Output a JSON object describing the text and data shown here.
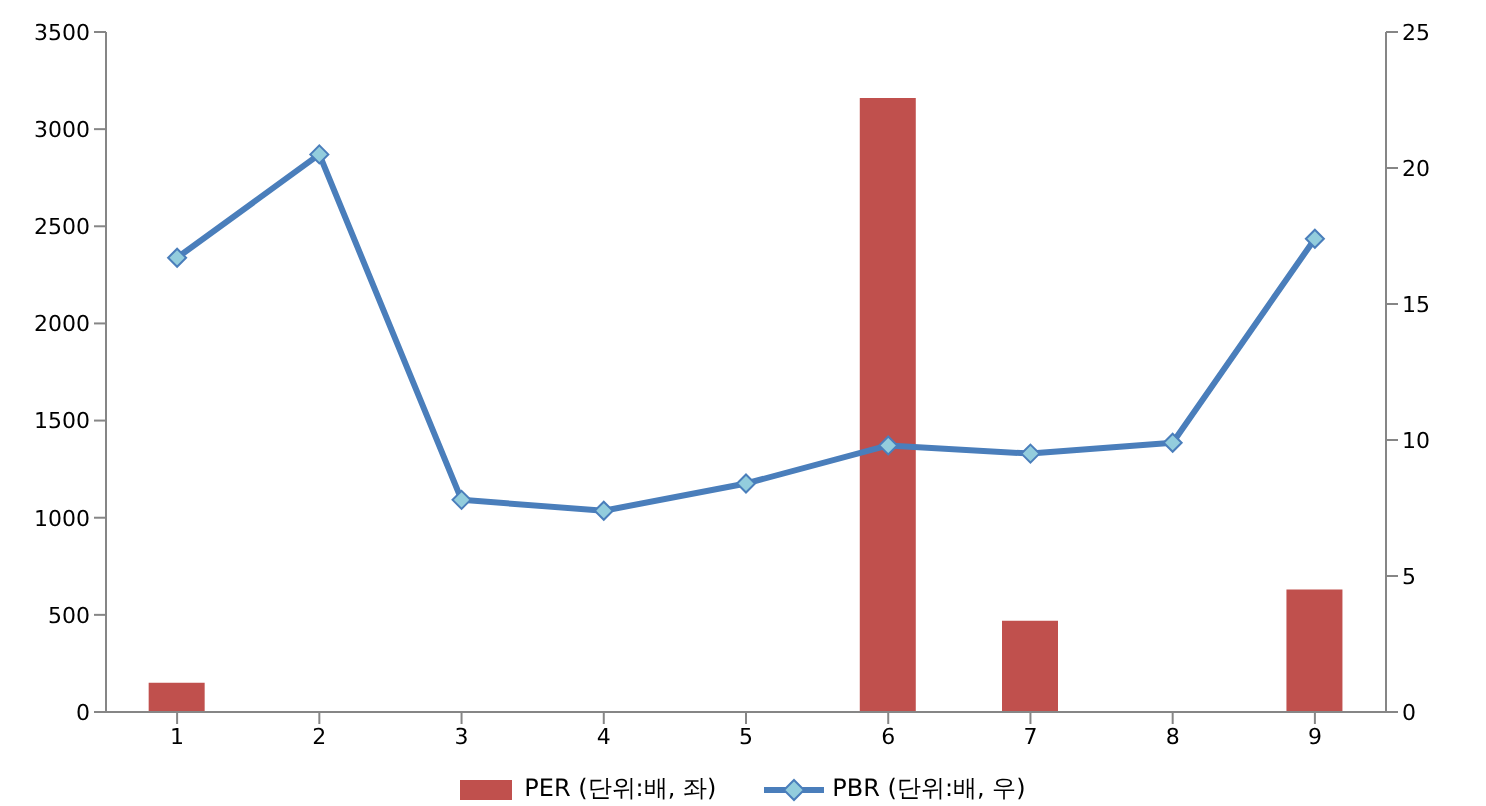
{
  "chart_data": {
    "type": "bar",
    "categories": [
      "1",
      "2",
      "3",
      "4",
      "5",
      "6",
      "7",
      "8",
      "9"
    ],
    "series": [
      {
        "name": "PER (단위:배, 좌)",
        "color": "#c0504d",
        "values": [
          150,
          null,
          null,
          null,
          null,
          3160,
          470,
          null,
          630
        ]
      },
      {
        "name": "PBR (단위:배, 우)",
        "type": "line",
        "axis": "y2",
        "color": "#4a7ebb",
        "marker": "diamond",
        "values": [
          16.7,
          20.5,
          7.8,
          7.4,
          8.4,
          9.8,
          9.5,
          9.9,
          17.4
        ]
      }
    ],
    "ylim": [
      0,
      3500
    ],
    "yticks": [
      0,
      500,
      1000,
      1500,
      2000,
      2500,
      3000,
      3500
    ],
    "y2lim": [
      0,
      25
    ],
    "y2ticks": [
      0,
      5,
      10,
      15,
      20,
      25
    ],
    "grid": false,
    "legend": "bottom"
  }
}
